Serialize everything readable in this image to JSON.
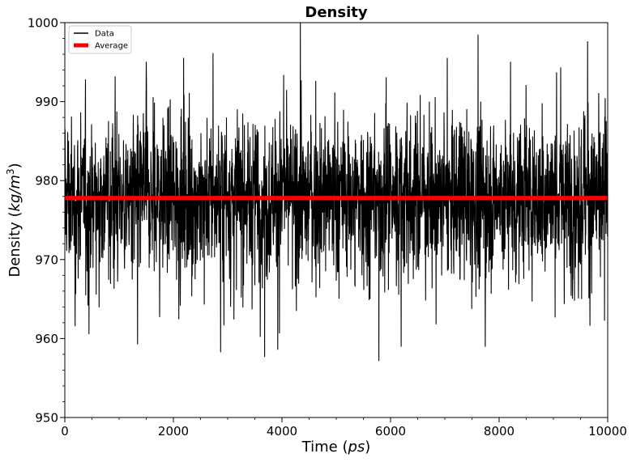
{
  "chart_data": {
    "type": "line",
    "title": "Density",
    "xlabel": "Time",
    "xlabel_unit": "ps",
    "ylabel": "Density",
    "ylabel_unit_base": "kg/m",
    "ylabel_unit_exp": "3",
    "xlim": [
      0,
      10000
    ],
    "ylim": [
      950,
      1000
    ],
    "x_ticks": [
      0,
      2000,
      4000,
      6000,
      8000,
      10000
    ],
    "y_ticks": [
      950,
      960,
      970,
      980,
      990,
      1000
    ],
    "grid": false,
    "legend_position": "top-left",
    "legend": [
      "Data",
      "Average"
    ],
    "series": [
      {
        "name": "Data",
        "color": "#000000",
        "n_points": 10000,
        "mean": 977.8,
        "typical_range": [
          968,
          988
        ],
        "extremes": [
          {
            "x": 190,
            "y": 961.6
          },
          {
            "x": 445,
            "y": 960.6
          },
          {
            "x": 1340,
            "y": 959.3
          },
          {
            "x": 2870,
            "y": 958.3
          },
          {
            "x": 3680,
            "y": 957.7
          },
          {
            "x": 5785,
            "y": 957.2
          },
          {
            "x": 7745,
            "y": 959.0
          },
          {
            "x": 2730,
            "y": 996.1
          },
          {
            "x": 9630,
            "y": 997.6
          },
          {
            "x": 7045,
            "y": 995.5
          },
          {
            "x": 1500,
            "y": 995.0
          },
          {
            "x": 8210,
            "y": 995.0
          }
        ]
      },
      {
        "name": "Average",
        "color": "#ff0000",
        "x": [
          0,
          10000
        ],
        "y": [
          977.8,
          977.8
        ]
      }
    ]
  }
}
